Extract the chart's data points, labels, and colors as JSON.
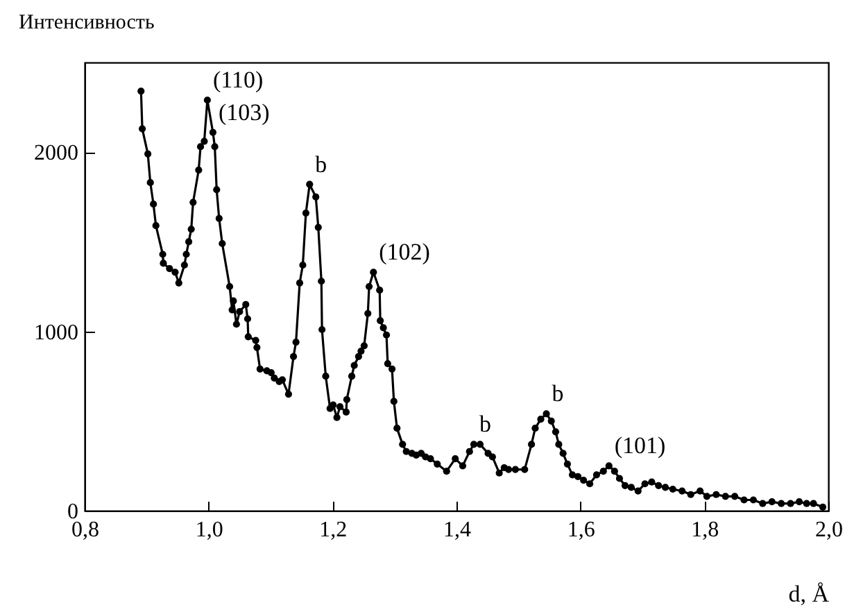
{
  "chart_data": {
    "type": "line",
    "xlabel": "d, Å",
    "ylabel": "Интенсивность",
    "x": [
      0.891,
      0.893,
      0.902,
      0.906,
      0.911,
      0.915,
      0.926,
      0.927,
      0.937,
      0.946,
      0.952,
      0.961,
      0.964,
      0.968,
      0.972,
      0.975,
      0.984,
      0.987,
      0.993,
      0.998,
      1.007,
      1.01,
      1.013,
      1.017,
      1.022,
      1.034,
      1.038,
      1.04,
      1.045,
      1.05,
      1.06,
      1.063,
      1.064,
      1.076,
      1.078,
      1.083,
      1.094,
      1.101,
      1.106,
      1.114,
      1.119,
      1.129,
      1.137,
      1.141,
      1.147,
      1.152,
      1.157,
      1.163,
      1.173,
      1.177,
      1.182,
      1.183,
      1.189,
      1.196,
      1.201,
      1.207,
      1.212,
      1.222,
      1.223,
      1.231,
      1.235,
      1.242,
      1.246,
      1.251,
      1.257,
      1.259,
      1.266,
      1.276,
      1.277,
      1.282,
      1.287,
      1.289,
      1.296,
      1.299,
      1.304,
      1.313,
      1.319,
      1.328,
      1.335,
      1.343,
      1.35,
      1.358,
      1.369,
      1.384,
      1.398,
      1.41,
      1.421,
      1.428,
      1.438,
      1.451,
      1.458,
      1.469,
      1.477,
      1.484,
      1.495,
      1.51,
      1.521,
      1.527,
      1.536,
      1.545,
      1.553,
      1.56,
      1.565,
      1.572,
      1.579,
      1.587,
      1.596,
      1.605,
      1.615,
      1.626,
      1.637,
      1.646,
      1.655,
      1.663,
      1.672,
      1.682,
      1.693,
      1.704,
      1.715,
      1.726,
      1.737,
      1.749,
      1.764,
      1.778,
      1.793,
      1.804,
      1.819,
      1.834,
      1.849,
      1.864,
      1.879,
      1.894,
      1.909,
      1.924,
      1.939,
      1.953,
      1.965,
      1.976,
      1.991
    ],
    "series": [
      {
        "color": "#000000",
        "values": [
          2340,
          2130,
          1990,
          1830,
          1710,
          1590,
          1430,
          1380,
          1350,
          1330,
          1270,
          1370,
          1430,
          1500,
          1570,
          1720,
          1900,
          2030,
          2060,
          2290,
          2110,
          2030,
          1790,
          1630,
          1490,
          1250,
          1120,
          1170,
          1040,
          1110,
          1150,
          1070,
          970,
          950,
          910,
          790,
          780,
          770,
          740,
          720,
          730,
          650,
          860,
          940,
          1270,
          1370,
          1660,
          1820,
          1750,
          1580,
          1280,
          1010,
          750,
          570,
          590,
          520,
          580,
          550,
          620,
          750,
          810,
          860,
          890,
          920,
          1100,
          1250,
          1330,
          1230,
          1060,
          1020,
          980,
          820,
          790,
          610,
          460,
          370,
          330,
          320,
          310,
          320,
          300,
          290,
          260,
          220,
          290,
          250,
          330,
          370,
          370,
          320,
          300,
          210,
          240,
          230,
          230,
          230,
          370,
          460,
          510,
          540,
          500,
          440,
          370,
          320,
          260,
          200,
          190,
          170,
          150,
          200,
          220,
          250,
          220,
          180,
          140,
          130,
          110,
          150,
          160,
          140,
          130,
          120,
          110,
          90,
          110,
          80,
          90,
          80,
          80,
          60,
          60,
          40,
          50,
          40,
          40,
          50,
          40,
          40,
          20
        ]
      }
    ],
    "xlim": [
      0.8,
      2.0
    ],
    "ylim": [
      0,
      2500
    ],
    "xticks": [
      {
        "value": 0.8,
        "label": "0,8"
      },
      {
        "value": 1.0,
        "label": "1,0"
      },
      {
        "value": 1.2,
        "label": "1,2"
      },
      {
        "value": 1.4,
        "label": "1,4"
      },
      {
        "value": 1.6,
        "label": "1,6"
      },
      {
        "value": 1.8,
        "label": "1,8"
      },
      {
        "value": 2.0,
        "label": "2,0"
      }
    ],
    "yticks": [
      0,
      1000,
      2000
    ],
    "marker": "circle",
    "line_style": "solid",
    "grid": false,
    "annotations": [
      {
        "text": "(110)",
        "x": 0.998,
        "y": 2290
      },
      {
        "text": "(103)",
        "x": 1.007,
        "y": 2110
      },
      {
        "text": "b",
        "x": 1.163,
        "y": 1820
      },
      {
        "text": "(102)",
        "x": 1.266,
        "y": 1330
      },
      {
        "text": "b",
        "x": 1.428,
        "y": 370
      },
      {
        "text": "b",
        "x": 1.545,
        "y": 540
      },
      {
        "text": "(101)",
        "x": 1.646,
        "y": 250
      }
    ]
  }
}
